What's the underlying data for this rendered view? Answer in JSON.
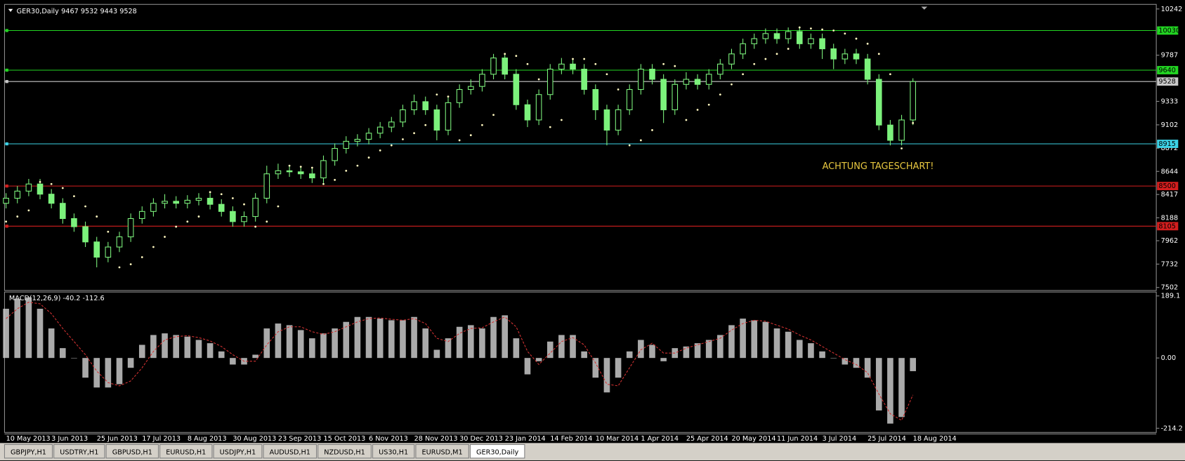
{
  "header": {
    "title": "GER30,Daily",
    "ohlc": "9467 9532 9443 9528"
  },
  "chart_data": [
    {
      "type": "candlestick",
      "annotation": "ACHTUNG TAGESCHART!",
      "categories": [
        "10 May 2013",
        null,
        null,
        null,
        "3 Jun 2013",
        null,
        null,
        null,
        "25 Jun 2013",
        null,
        null,
        null,
        "17 Jul 2013",
        null,
        null,
        null,
        "8 Aug 2013",
        null,
        null,
        null,
        "30 Aug 2013",
        null,
        null,
        null,
        "23 Sep 2013",
        null,
        null,
        null,
        "15 Oct 2013",
        null,
        null,
        null,
        "6 Nov 2013",
        null,
        null,
        null,
        "28 Nov 2013",
        null,
        null,
        null,
        "30 Dec 2013",
        null,
        null,
        null,
        "23 Jan 2014",
        null,
        null,
        null,
        "14 Feb 2014",
        null,
        null,
        null,
        "10 Mar 2014",
        null,
        null,
        null,
        "1 Apr 2014",
        null,
        null,
        null,
        "25 Apr 2014",
        null,
        null,
        null,
        "20 May 2014",
        null,
        null,
        null,
        "11 Jun 2014",
        null,
        null,
        null,
        "3 Jul 2014",
        null,
        null,
        null,
        "25 Jul 2014",
        null,
        null,
        null,
        "18 Aug 2014"
      ],
      "open": [
        8330,
        8380,
        8450,
        8520,
        8420,
        8330,
        8180,
        8100,
        7950,
        7800,
        7900,
        8000,
        8180,
        8250,
        8330,
        8350,
        8330,
        8360,
        8380,
        8320,
        8250,
        8150,
        8200,
        8380,
        8620,
        8650,
        8640,
        8620,
        8580,
        8750,
        8870,
        8940,
        8960,
        9020,
        9080,
        9130,
        9250,
        9330,
        9250,
        9050,
        9320,
        9450,
        9480,
        9600,
        9760,
        9600,
        9300,
        9150,
        9400,
        9650,
        9700,
        9650,
        9450,
        9250,
        9050,
        9250,
        9450,
        9650,
        9550,
        9250,
        9500,
        9550,
        9500,
        9600,
        9700,
        9800,
        9900,
        9950,
        10000,
        9950,
        10020,
        9900,
        9950,
        9850,
        9750,
        9800,
        9750,
        9550,
        9100,
        8950,
        9150
      ],
      "high": [
        8430,
        8500,
        8570,
        8570,
        8470,
        8380,
        8230,
        8150,
        8000,
        7950,
        8050,
        8230,
        8300,
        8380,
        8420,
        8400,
        8410,
        8430,
        8430,
        8370,
        8300,
        8250,
        8430,
        8700,
        8720,
        8700,
        8690,
        8670,
        8800,
        8920,
        8990,
        9010,
        9070,
        9130,
        9180,
        9300,
        9400,
        9380,
        9300,
        9370,
        9500,
        9550,
        9650,
        9800,
        9800,
        9650,
        9350,
        9450,
        9700,
        9760,
        9750,
        9700,
        9500,
        9300,
        9300,
        9500,
        9700,
        9700,
        9600,
        9550,
        9620,
        9600,
        9650,
        9750,
        9850,
        9950,
        10000,
        10050,
        10050,
        10060,
        10070,
        10000,
        10000,
        9900,
        9850,
        9850,
        9800,
        9600,
        9150,
        9200,
        9560
      ],
      "low": [
        8280,
        8330,
        8400,
        8370,
        8280,
        8130,
        8050,
        7900,
        7700,
        7750,
        7850,
        7950,
        8130,
        8200,
        8280,
        8280,
        8280,
        8310,
        8270,
        8200,
        8100,
        8100,
        8150,
        8330,
        8570,
        8590,
        8570,
        8530,
        8530,
        8700,
        8820,
        8890,
        8910,
        8970,
        9030,
        9080,
        9200,
        9200,
        8950,
        9000,
        9270,
        9400,
        9430,
        9550,
        9550,
        9250,
        9080,
        9100,
        9350,
        9600,
        9600,
        9400,
        9150,
        8900,
        9000,
        9200,
        9400,
        9500,
        9120,
        9200,
        9450,
        9450,
        9450,
        9550,
        9650,
        9750,
        9850,
        9900,
        9900,
        9900,
        9850,
        9850,
        9750,
        9650,
        9700,
        9700,
        9500,
        9050,
        8900,
        8900,
        9100
      ],
      "close": [
        8380,
        8450,
        8520,
        8420,
        8330,
        8180,
        8100,
        7950,
        7800,
        7900,
        8000,
        8180,
        8250,
        8330,
        8350,
        8330,
        8360,
        8380,
        8320,
        8250,
        8150,
        8200,
        8380,
        8620,
        8650,
        8640,
        8620,
        8580,
        8750,
        8870,
        8940,
        8960,
        9020,
        9080,
        9130,
        9250,
        9330,
        9250,
        9050,
        9320,
        9450,
        9480,
        9600,
        9760,
        9600,
        9300,
        9150,
        9400,
        9650,
        9700,
        9650,
        9450,
        9250,
        9050,
        9250,
        9450,
        9650,
        9550,
        9250,
        9500,
        9550,
        9500,
        9600,
        9700,
        9800,
        9900,
        9950,
        10000,
        9950,
        10020,
        9900,
        9950,
        9850,
        9750,
        9800,
        9750,
        9550,
        9100,
        8950,
        9150,
        9528
      ],
      "color": "#7cf27c",
      "sar": {
        "color": "#fff8c0",
        "values": [
          8150,
          8200,
          8260,
          8540,
          8520,
          8480,
          8400,
          8300,
          8200,
          8050,
          7700,
          7730,
          7800,
          7900,
          8000,
          8100,
          8150,
          8200,
          8440,
          8420,
          8380,
          8320,
          8100,
          8150,
          8300,
          8700,
          8690,
          8680,
          8520,
          8560,
          8650,
          8700,
          8780,
          8850,
          8900,
          8960,
          9020,
          9100,
          9400,
          9380,
          8950,
          9000,
          9100,
          9200,
          9800,
          9780,
          9700,
          9550,
          9080,
          9150,
          9750,
          9750,
          9700,
          9600,
          9450,
          8900,
          8950,
          9050,
          9700,
          9680,
          9150,
          9250,
          9300,
          9400,
          9500,
          9600,
          9700,
          9750,
          9800,
          9850,
          10060,
          10050,
          10040,
          10030,
          10000,
          9950,
          9900,
          9800,
          9600,
          8870,
          9120
        ]
      },
      "levels": [
        {
          "value": 10030,
          "color": "#22d622"
        },
        {
          "value": 9640,
          "color": "#22d622"
        },
        {
          "value": 9528,
          "color": "#c8c8c8"
        },
        {
          "value": 8915,
          "color": "#3cd2e6"
        },
        {
          "value": 8500,
          "color": "#d41e1e"
        },
        {
          "value": 8105,
          "color": "#d41e1e"
        }
      ],
      "ylim": [
        7472,
        10287
      ],
      "yticks": [
        10242,
        9787,
        9333,
        9102,
        8872,
        8644,
        8417,
        8188,
        7962,
        7732,
        7502
      ]
    },
    {
      "type": "macd",
      "title": "MACD(12,26,9) -40.2 -112.6",
      "series": [
        {
          "color": "#c8c8c8",
          "values": [
            150,
            180,
            185,
            150,
            90,
            30,
            0,
            -60,
            -90,
            -90,
            -80,
            -30,
            40,
            70,
            75,
            70,
            65,
            55,
            45,
            20,
            -20,
            -20,
            10,
            90,
            105,
            100,
            85,
            60,
            75,
            90,
            110,
            125,
            125,
            120,
            115,
            115,
            125,
            90,
            25,
            60,
            95,
            100,
            90,
            125,
            130,
            60,
            -50,
            -10,
            50,
            70,
            70,
            20,
            -60,
            -105,
            -60,
            20,
            55,
            40,
            -10,
            30,
            35,
            45,
            55,
            70,
            100,
            120,
            115,
            110,
            90,
            80,
            55,
            45,
            20,
            0,
            -20,
            -30,
            -60,
            -160,
            -200,
            -180,
            -40.2
          ]
        },
        {
          "color": "#d23232",
          "values": [
            120,
            150,
            170,
            165,
            135,
            90,
            50,
            10,
            -40,
            -75,
            -85,
            -70,
            -30,
            20,
            55,
            65,
            68,
            62,
            52,
            35,
            10,
            -10,
            -10,
            40,
            80,
            95,
            95,
            80,
            72,
            80,
            95,
            110,
            120,
            122,
            118,
            115,
            120,
            105,
            60,
            50,
            75,
            90,
            92,
            110,
            125,
            95,
            20,
            -20,
            15,
            50,
            62,
            40,
            -15,
            -80,
            -85,
            -30,
            25,
            45,
            15,
            15,
            30,
            40,
            50,
            60,
            85,
            105,
            115,
            112,
            100,
            88,
            70,
            55,
            35,
            15,
            -5,
            -20,
            -45,
            -110,
            -170,
            -190,
            -112.6
          ]
        }
      ],
      "ylim": [
        -227,
        201
      ],
      "yticks": [
        189.1,
        {
          "value": 0,
          "label": "0.00"
        },
        -214.2
      ]
    }
  ],
  "tabs": [
    "GBPJPY,H1",
    "USDTRY,H1",
    "GBPUSD,H1",
    "EURUSD,H1",
    "USDJPY,H1",
    "AUDUSD,H1",
    "NZDUSD,H1",
    "US30,H1",
    "EURUSD,M1",
    "GER30,Daily"
  ],
  "active_tab": 9
}
